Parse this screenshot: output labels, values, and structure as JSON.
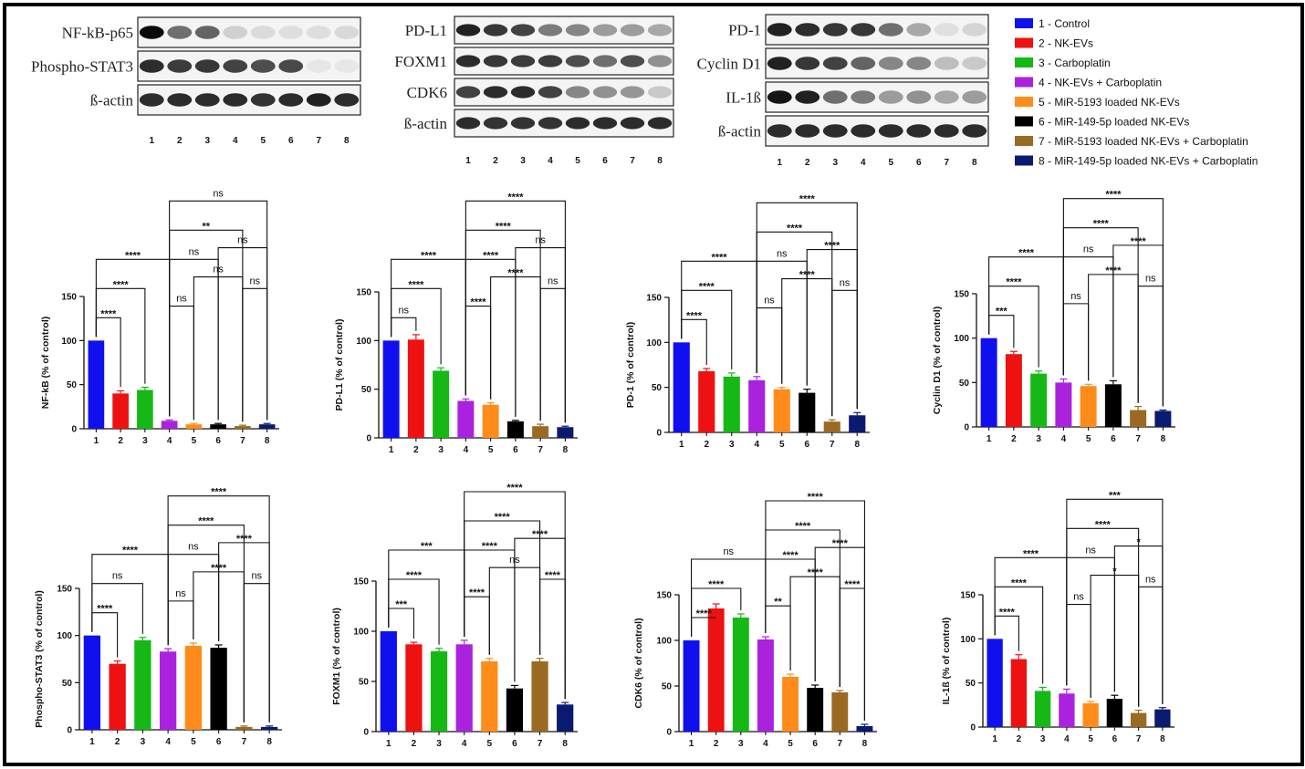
{
  "legend": [
    {
      "label": "1 - Control",
      "color": "#1010ee"
    },
    {
      "label": "2 - NK-EVs",
      "color": "#ee1111"
    },
    {
      "label": "3 - Carboplatin",
      "color": "#16b816"
    },
    {
      "label": "4 - NK-EVs + Carboplatin",
      "color": "#aa22dd"
    },
    {
      "label": "5 - MiR-5193 loaded NK-EVs",
      "color": "#ff8c1a"
    },
    {
      "label": "6 - MiR-149-5p loaded NK-EVs",
      "color": "#000000"
    },
    {
      "label": "7 - MiR-5193 loaded NK-EVs + Carboplatin",
      "color": "#9a6a22"
    },
    {
      "label": "8 - MiR-149-5p loaded NK-EVs + Carboplatin",
      "color": "#0a1a6e"
    }
  ],
  "blots": [
    {
      "id": "blot-a",
      "lanes": [
        "1",
        "2",
        "3",
        "4",
        "5",
        "6",
        "7",
        "8"
      ],
      "rows": [
        {
          "label": "NF-kB-p65",
          "intensity": [
            1.0,
            0.55,
            0.6,
            0.12,
            0.07,
            0.06,
            0.06,
            0.08
          ]
        },
        {
          "label": "Phospho-STAT3",
          "intensity": [
            0.85,
            0.78,
            0.8,
            0.75,
            0.7,
            0.72,
            0.02,
            0.02
          ]
        },
        {
          "label": "ß-actin",
          "intensity": [
            0.85,
            0.85,
            0.85,
            0.85,
            0.82,
            0.85,
            0.9,
            0.85
          ]
        }
      ]
    },
    {
      "id": "blot-b",
      "lanes": [
        "1",
        "2",
        "3",
        "4",
        "5",
        "6",
        "7",
        "8"
      ],
      "rows": [
        {
          "label": "PD-L1",
          "intensity": [
            0.9,
            0.8,
            0.75,
            0.5,
            0.45,
            0.35,
            0.35,
            0.3
          ]
        },
        {
          "label": "FOXM1",
          "intensity": [
            0.85,
            0.8,
            0.78,
            0.78,
            0.7,
            0.55,
            0.7,
            0.4
          ]
        },
        {
          "label": "CDK6",
          "intensity": [
            0.75,
            0.85,
            0.85,
            0.75,
            0.45,
            0.4,
            0.38,
            0.15
          ]
        },
        {
          "label": "ß-actin",
          "intensity": [
            0.85,
            0.82,
            0.82,
            0.82,
            0.85,
            0.85,
            0.85,
            0.85
          ]
        }
      ]
    },
    {
      "id": "blot-c",
      "lanes": [
        "1",
        "2",
        "3",
        "4",
        "5",
        "6",
        "7",
        "8"
      ],
      "rows": [
        {
          "label": "PD-1",
          "intensity": [
            0.9,
            0.85,
            0.8,
            0.8,
            0.55,
            0.3,
            0.05,
            0.1
          ]
        },
        {
          "label": "Cyclin D1",
          "intensity": [
            0.9,
            0.8,
            0.75,
            0.6,
            0.45,
            0.45,
            0.2,
            0.15
          ]
        },
        {
          "label": "IL-1ß",
          "intensity": [
            0.95,
            0.9,
            0.55,
            0.5,
            0.35,
            0.4,
            0.3,
            0.35
          ]
        },
        {
          "label": "ß-actin",
          "intensity": [
            0.85,
            0.85,
            0.85,
            0.85,
            0.85,
            0.85,
            0.85,
            0.85
          ]
        }
      ]
    }
  ],
  "chart_data": [
    {
      "type": "bar",
      "categories": [
        "1",
        "2",
        "3",
        "4",
        "5",
        "6",
        "7",
        "8"
      ],
      "values": [
        100,
        40,
        44,
        9,
        5,
        5,
        3,
        5
      ],
      "errors": [
        0,
        3,
        3,
        1,
        1,
        1,
        1,
        1
      ],
      "ylabel": "NF-kB (% of control)",
      "ylim": [
        0,
        150
      ],
      "yticks": [
        0,
        50,
        100,
        150
      ],
      "comparisons": [
        {
          "a": 1,
          "b": 2,
          "label": "****"
        },
        {
          "a": 1,
          "b": 3,
          "label": "****"
        },
        {
          "a": 1,
          "b": 4,
          "label": "****"
        },
        {
          "a": 4,
          "b": 7,
          "label": "**"
        },
        {
          "a": 4,
          "b": 8,
          "label": "ns"
        },
        {
          "a": 4,
          "b": 5,
          "label": "ns"
        },
        {
          "a": 4,
          "b": 6,
          "label": "ns"
        },
        {
          "a": 7,
          "b": 8,
          "label": "ns"
        },
        {
          "a": 5,
          "b": 7,
          "label": "ns"
        },
        {
          "a": 6,
          "b": 8,
          "label": "ns"
        }
      ]
    },
    {
      "type": "bar",
      "categories": [
        "1",
        "2",
        "3",
        "4",
        "5",
        "6",
        "7",
        "8"
      ],
      "values": [
        100,
        101,
        69,
        38,
        34,
        17,
        12,
        11
      ],
      "errors": [
        0,
        5,
        3,
        2,
        2,
        1,
        2,
        1
      ],
      "ylabel": "PD-L1 (% of control)",
      "ylim": [
        0,
        150
      ],
      "yticks": [
        0,
        50,
        100,
        150
      ],
      "comparisons": [
        {
          "a": 1,
          "b": 2,
          "label": "ns"
        },
        {
          "a": 1,
          "b": 3,
          "label": "****"
        },
        {
          "a": 1,
          "b": 4,
          "label": "****"
        },
        {
          "a": 4,
          "b": 7,
          "label": "****"
        },
        {
          "a": 4,
          "b": 8,
          "label": "****"
        },
        {
          "a": 4,
          "b": 5,
          "label": "****"
        },
        {
          "a": 4,
          "b": 6,
          "label": "****"
        },
        {
          "a": 7,
          "b": 8,
          "label": "ns"
        },
        {
          "a": 5,
          "b": 7,
          "label": "****"
        },
        {
          "a": 6,
          "b": 8,
          "label": "ns"
        }
      ]
    },
    {
      "type": "bar",
      "categories": [
        "1",
        "2",
        "3",
        "4",
        "5",
        "6",
        "7",
        "8"
      ],
      "values": [
        100,
        68,
        62,
        58,
        48,
        44,
        12,
        19
      ],
      "errors": [
        0,
        3,
        4,
        4,
        2,
        4,
        2,
        3
      ],
      "ylabel": "PD-1 (% of control)",
      "ylim": [
        0,
        150
      ],
      "yticks": [
        0,
        50,
        100,
        150
      ],
      "comparisons": [
        {
          "a": 1,
          "b": 2,
          "label": "****"
        },
        {
          "a": 1,
          "b": 3,
          "label": "****"
        },
        {
          "a": 1,
          "b": 4,
          "label": "****"
        },
        {
          "a": 4,
          "b": 7,
          "label": "****"
        },
        {
          "a": 4,
          "b": 8,
          "label": "****"
        },
        {
          "a": 4,
          "b": 5,
          "label": "ns"
        },
        {
          "a": 4,
          "b": 6,
          "label": "ns"
        },
        {
          "a": 7,
          "b": 8,
          "label": "ns"
        },
        {
          "a": 5,
          "b": 7,
          "label": "****"
        },
        {
          "a": 6,
          "b": 8,
          "label": "****"
        }
      ]
    },
    {
      "type": "bar",
      "categories": [
        "1",
        "2",
        "3",
        "4",
        "5",
        "6",
        "7",
        "8"
      ],
      "values": [
        100,
        82,
        60,
        50,
        46,
        48,
        19,
        18
      ],
      "errors": [
        0,
        3,
        3,
        4,
        2,
        4,
        4,
        1
      ],
      "ylabel": "Cyclin D1 (% of control)",
      "ylim": [
        0,
        150
      ],
      "yticks": [
        0,
        50,
        100,
        150
      ],
      "comparisons": [
        {
          "a": 1,
          "b": 2,
          "label": "***"
        },
        {
          "a": 1,
          "b": 3,
          "label": "****"
        },
        {
          "a": 1,
          "b": 4,
          "label": "****"
        },
        {
          "a": 4,
          "b": 7,
          "label": "****"
        },
        {
          "a": 4,
          "b": 8,
          "label": "****"
        },
        {
          "a": 4,
          "b": 5,
          "label": "ns"
        },
        {
          "a": 4,
          "b": 6,
          "label": "ns"
        },
        {
          "a": 7,
          "b": 8,
          "label": "ns"
        },
        {
          "a": 5,
          "b": 7,
          "label": "****"
        },
        {
          "a": 6,
          "b": 8,
          "label": "****"
        }
      ]
    },
    {
      "type": "bar",
      "categories": [
        "1",
        "2",
        "3",
        "4",
        "5",
        "6",
        "7",
        "8"
      ],
      "values": [
        100,
        70,
        95,
        83,
        89,
        87,
        3,
        3
      ],
      "errors": [
        0,
        3,
        3,
        3,
        3,
        3,
        1,
        1
      ],
      "ylabel": "Phospho-STAT3 (% of control)",
      "ylim": [
        0,
        150
      ],
      "yticks": [
        0,
        50,
        100,
        150
      ],
      "comparisons": [
        {
          "a": 1,
          "b": 2,
          "label": "****"
        },
        {
          "a": 1,
          "b": 3,
          "label": "ns"
        },
        {
          "a": 1,
          "b": 4,
          "label": "****"
        },
        {
          "a": 4,
          "b": 7,
          "label": "****"
        },
        {
          "a": 4,
          "b": 8,
          "label": "****"
        },
        {
          "a": 4,
          "b": 5,
          "label": "ns"
        },
        {
          "a": 4,
          "b": 6,
          "label": "ns"
        },
        {
          "a": 7,
          "b": 8,
          "label": "ns"
        },
        {
          "a": 5,
          "b": 7,
          "label": "****"
        },
        {
          "a": 6,
          "b": 8,
          "label": "****"
        }
      ]
    },
    {
      "type": "bar",
      "categories": [
        "1",
        "2",
        "3",
        "4",
        "5",
        "6",
        "7",
        "8"
      ],
      "values": [
        100,
        87,
        80,
        87,
        70,
        43,
        70,
        27
      ],
      "errors": [
        0,
        2,
        3,
        4,
        3,
        3,
        3,
        2
      ],
      "ylabel": "FOXM1 (% of control)",
      "ylim": [
        0,
        150
      ],
      "yticks": [
        0,
        50,
        100,
        150
      ],
      "comparisons": [
        {
          "a": 1,
          "b": 2,
          "label": "***"
        },
        {
          "a": 1,
          "b": 3,
          "label": "****"
        },
        {
          "a": 1,
          "b": 4,
          "label": "***"
        },
        {
          "a": 4,
          "b": 7,
          "label": "****"
        },
        {
          "a": 4,
          "b": 8,
          "label": "****"
        },
        {
          "a": 4,
          "b": 5,
          "label": "****"
        },
        {
          "a": 4,
          "b": 6,
          "label": "****"
        },
        {
          "a": 7,
          "b": 8,
          "label": "****"
        },
        {
          "a": 5,
          "b": 7,
          "label": "ns"
        },
        {
          "a": 6,
          "b": 8,
          "label": "****"
        }
      ]
    },
    {
      "type": "bar",
      "categories": [
        "1",
        "2",
        "3",
        "4",
        "5",
        "6",
        "7",
        "8"
      ],
      "values": [
        100,
        135,
        125,
        101,
        60,
        48,
        43,
        6
      ],
      "errors": [
        0,
        5,
        4,
        3,
        3,
        3,
        2,
        2
      ],
      "ylabel": "CDK6 (% of control)",
      "ylim": [
        0,
        150
      ],
      "yticks": [
        0,
        50,
        100,
        150
      ],
      "comparisons": [
        {
          "a": 1,
          "b": 2,
          "label": "****"
        },
        {
          "a": 1,
          "b": 3,
          "label": "****"
        },
        {
          "a": 1,
          "b": 4,
          "label": "ns"
        },
        {
          "a": 4,
          "b": 7,
          "label": "****"
        },
        {
          "a": 4,
          "b": 8,
          "label": "****"
        },
        {
          "a": 4,
          "b": 5,
          "label": "**"
        },
        {
          "a": 4,
          "b": 6,
          "label": "****"
        },
        {
          "a": 7,
          "b": 8,
          "label": "****"
        },
        {
          "a": 5,
          "b": 7,
          "label": "****"
        },
        {
          "a": 6,
          "b": 8,
          "label": "****"
        }
      ]
    },
    {
      "type": "bar",
      "categories": [
        "1",
        "2",
        "3",
        "4",
        "5",
        "6",
        "7",
        "8"
      ],
      "values": [
        100,
        77,
        41,
        38,
        27,
        32,
        16,
        20
      ],
      "errors": [
        0,
        5,
        4,
        5,
        2,
        4,
        3,
        2
      ],
      "ylabel": "IL-1ß (% of control)",
      "ylim": [
        0,
        150
      ],
      "yticks": [
        0,
        50,
        100,
        150
      ],
      "comparisons": [
        {
          "a": 1,
          "b": 2,
          "label": "****"
        },
        {
          "a": 1,
          "b": 3,
          "label": "****"
        },
        {
          "a": 1,
          "b": 4,
          "label": "****"
        },
        {
          "a": 4,
          "b": 7,
          "label": "****"
        },
        {
          "a": 4,
          "b": 8,
          "label": "***"
        },
        {
          "a": 4,
          "b": 5,
          "label": "ns"
        },
        {
          "a": 4,
          "b": 6,
          "label": "ns"
        },
        {
          "a": 7,
          "b": 8,
          "label": "ns"
        },
        {
          "a": 5,
          "b": 7,
          "label": "*"
        },
        {
          "a": 6,
          "b": 8,
          "label": "*"
        }
      ]
    }
  ]
}
